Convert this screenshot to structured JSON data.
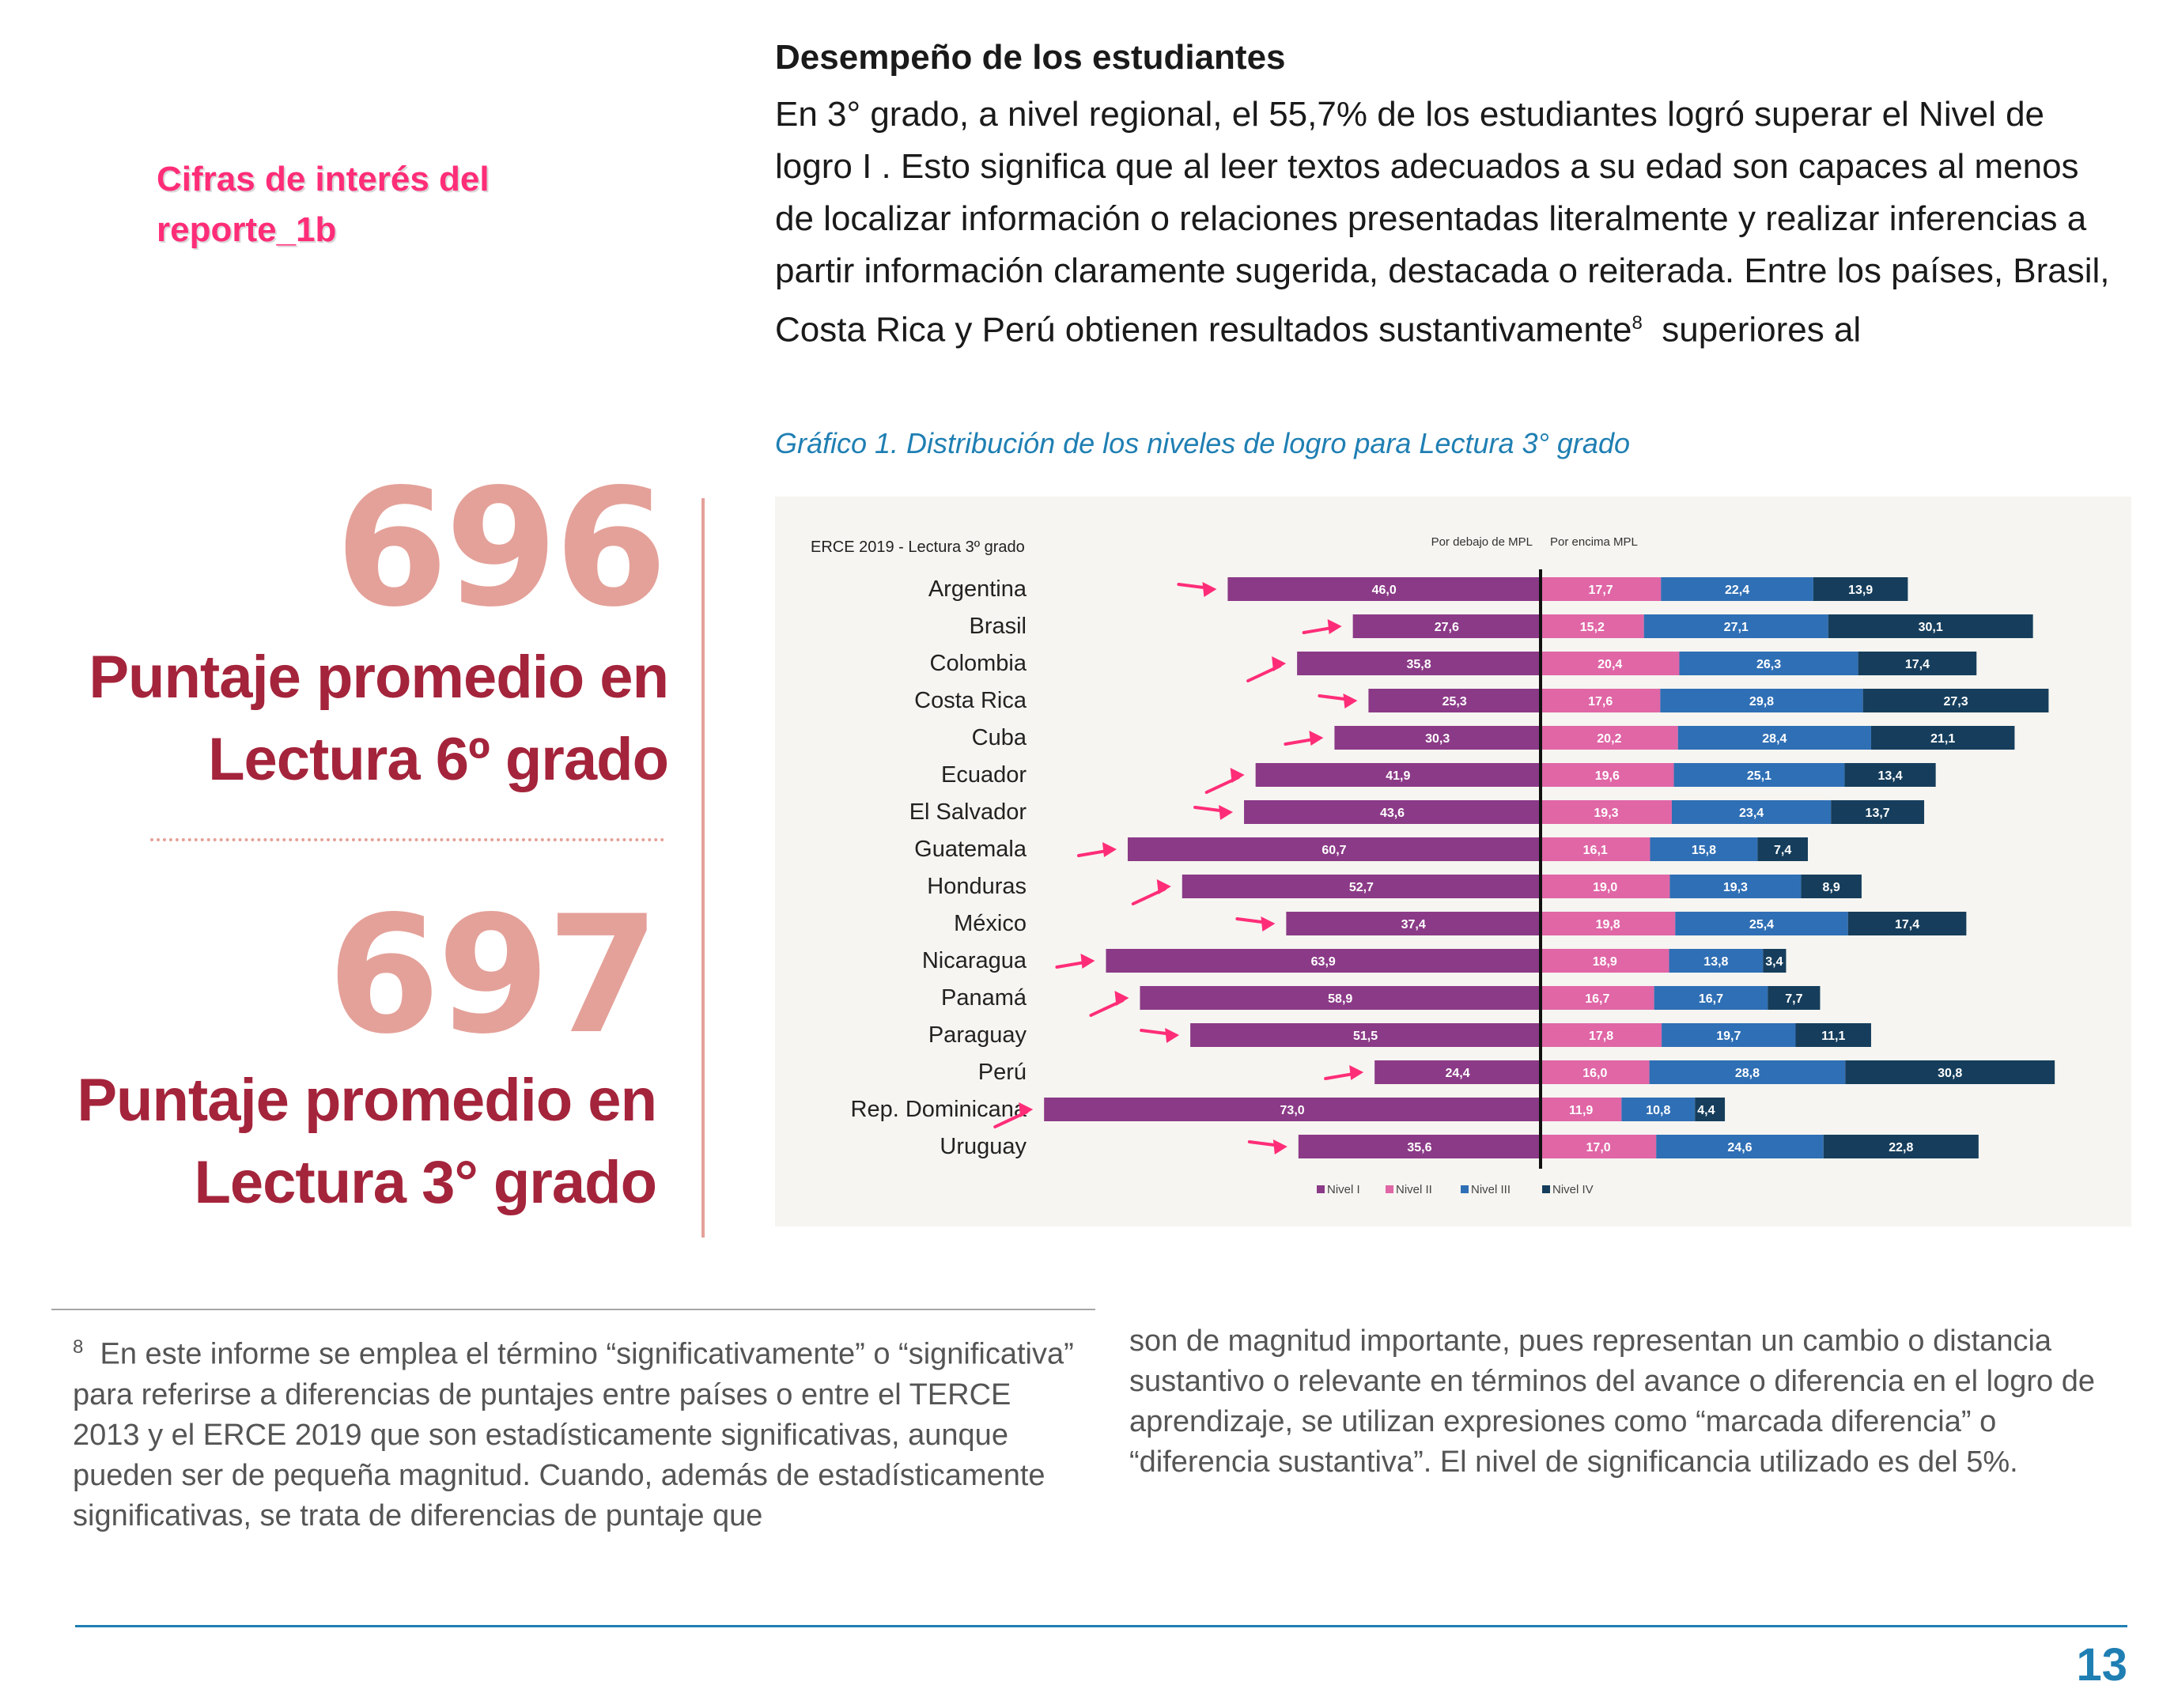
{
  "section": {
    "title": "Desempeño de los estudiantes",
    "paragraph_main": "En 3° grado, a nivel regional, el 55,7% de los estudiantes logró superar el Nivel de logro I . Esto significa que al leer textos adecuados a su edad son capaces al menos de localizar información o relaciones presentadas literalmente y realizar inferencias a partir información claramente sugerida, destacada o reiterada. Entre los países, Brasil, Costa Rica y Perú obtienen resultados sustantivamente",
    "footnote_ref": "8",
    "paragraph_tail": "  superiores al"
  },
  "annotation": {
    "label": "Cifras de interés del reporte_1b"
  },
  "stats": {
    "stat1_number": "696",
    "stat1_caption": "Puntaje promedio en Lectura 6º grado",
    "stat2_number": "697",
    "stat2_caption": "Puntaje promedio en Lectura 3° grado"
  },
  "chart_title": "Gráfico 1. Distribución de los niveles de logro para Lectura 3° grado",
  "chart_data": {
    "type": "bar",
    "orientation": "horizontal-diverging",
    "title": "ERCE 2019  - Lectura 3º grado",
    "left_label": "Por debajo de MPL",
    "right_label": "Por encima MPL",
    "legend_position": "bottom",
    "categories": [
      "Argentina",
      "Brasil",
      "Colombia",
      "Costa Rica",
      "Cuba",
      "Ecuador",
      "El Salvador",
      "Guatemala",
      "Honduras",
      "México",
      "Nicaragua",
      "Panamá",
      "Paraguay",
      "Perú",
      "Rep. Dominicana",
      "Uruguay"
    ],
    "series": [
      {
        "name": "Nivel I",
        "color": "#8b3a87",
        "side": "below",
        "values": [
          46.0,
          27.6,
          35.8,
          25.3,
          30.3,
          41.9,
          43.6,
          60.7,
          52.7,
          37.4,
          63.9,
          58.9,
          51.5,
          24.4,
          73.0,
          35.6
        ],
        "labels": [
          "46,0",
          "27,6",
          "35,8",
          "25,3",
          "30,3",
          "41,9",
          "43,6",
          "60,7",
          "52,7",
          "37,4",
          "63,9",
          "58,9",
          "51,5",
          "24,4",
          "73,0",
          "35,6"
        ]
      },
      {
        "name": "Nivel II",
        "color": "#e066a6",
        "side": "above",
        "values": [
          17.7,
          15.2,
          20.4,
          17.6,
          20.2,
          19.6,
          19.3,
          16.1,
          19.0,
          19.8,
          18.9,
          16.7,
          17.8,
          16.0,
          11.9,
          17.0
        ],
        "labels": [
          "17,7",
          "15,2",
          "20,4",
          "17,6",
          "20,2",
          "19,6",
          "19,3",
          "16,1",
          "19,0",
          "19,8",
          "18,9",
          "16,7",
          "17,8",
          "16,0",
          "11,9",
          "17,0"
        ]
      },
      {
        "name": "Nivel III",
        "color": "#2f6fb5",
        "side": "above",
        "values": [
          22.4,
          27.1,
          26.3,
          29.8,
          28.4,
          25.1,
          23.4,
          15.8,
          19.3,
          25.4,
          13.8,
          16.7,
          19.7,
          28.8,
          10.8,
          24.6
        ],
        "labels": [
          "22,4",
          "27,1",
          "26,3",
          "29,8",
          "28,4",
          "25,1",
          "23,4",
          "15,8",
          "19,3",
          "25,4",
          "13,8",
          "16,7",
          "19,7",
          "28,8",
          "10,8",
          "24,6"
        ]
      },
      {
        "name": "Nivel IV",
        "color": "#163e5c",
        "side": "above",
        "values": [
          13.9,
          30.1,
          17.4,
          27.3,
          21.1,
          13.4,
          13.7,
          7.4,
          8.9,
          17.4,
          3.4,
          7.7,
          11.1,
          30.8,
          4.4,
          22.8
        ],
        "labels": [
          "13,9",
          "30,1",
          "17,4",
          "27,3",
          "21,1",
          "13,4",
          "13,7",
          "7,4",
          "8,9",
          "17,4",
          "3,4",
          "7,7",
          "11,1",
          "30,8",
          "4,4",
          "22,8"
        ]
      }
    ],
    "annotation_arrow_color": "#ff2d78"
  },
  "footnotes": {
    "number": "8",
    "left": "En este informe se emplea el término “significativamente” o “significativa” para referirse a diferencias de puntajes entre países o entre el TERCE 2013 y el ERCE 2019 que son estadísticamente significativas, aunque pueden ser de pequeña magnitud. Cuando, además de estadísticamente significativas, se trata de diferencias de puntaje que",
    "right": "son de magnitud importante, pues representan un cambio o distancia sustantivo o relevante en términos del avance o diferencia en el logro de aprendizaje, se utilizan expresiones como “marcada diferencia” o “diferencia sustantiva”. El nivel de significancia utilizado es del 5%."
  },
  "page_number": "13"
}
